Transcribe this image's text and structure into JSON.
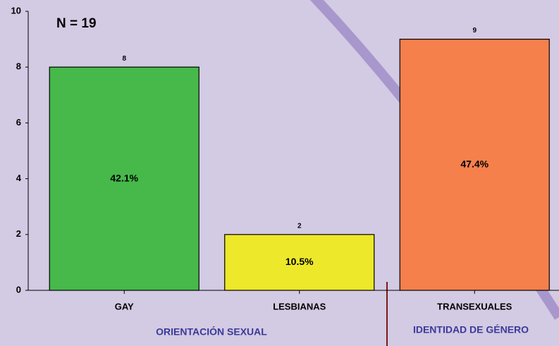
{
  "chart_data": {
    "type": "bar",
    "annotation": "N = 19",
    "categories": [
      "GAY",
      "LESBIANAS",
      "TRANSEXUALES"
    ],
    "values": [
      8,
      2,
      9
    ],
    "inner_labels": [
      "42.1%",
      "10.5%",
      "47.4%"
    ],
    "colors": [
      "#46b94a",
      "#eee82a",
      "#f5804c"
    ],
    "groups": [
      "ORIENTACIÓN SEXUAL",
      "IDENTIDAD DE GÉNERO"
    ],
    "ylim": [
      0,
      10
    ],
    "yticks": [
      0,
      2,
      4,
      6,
      8,
      10
    ],
    "grid": false
  }
}
